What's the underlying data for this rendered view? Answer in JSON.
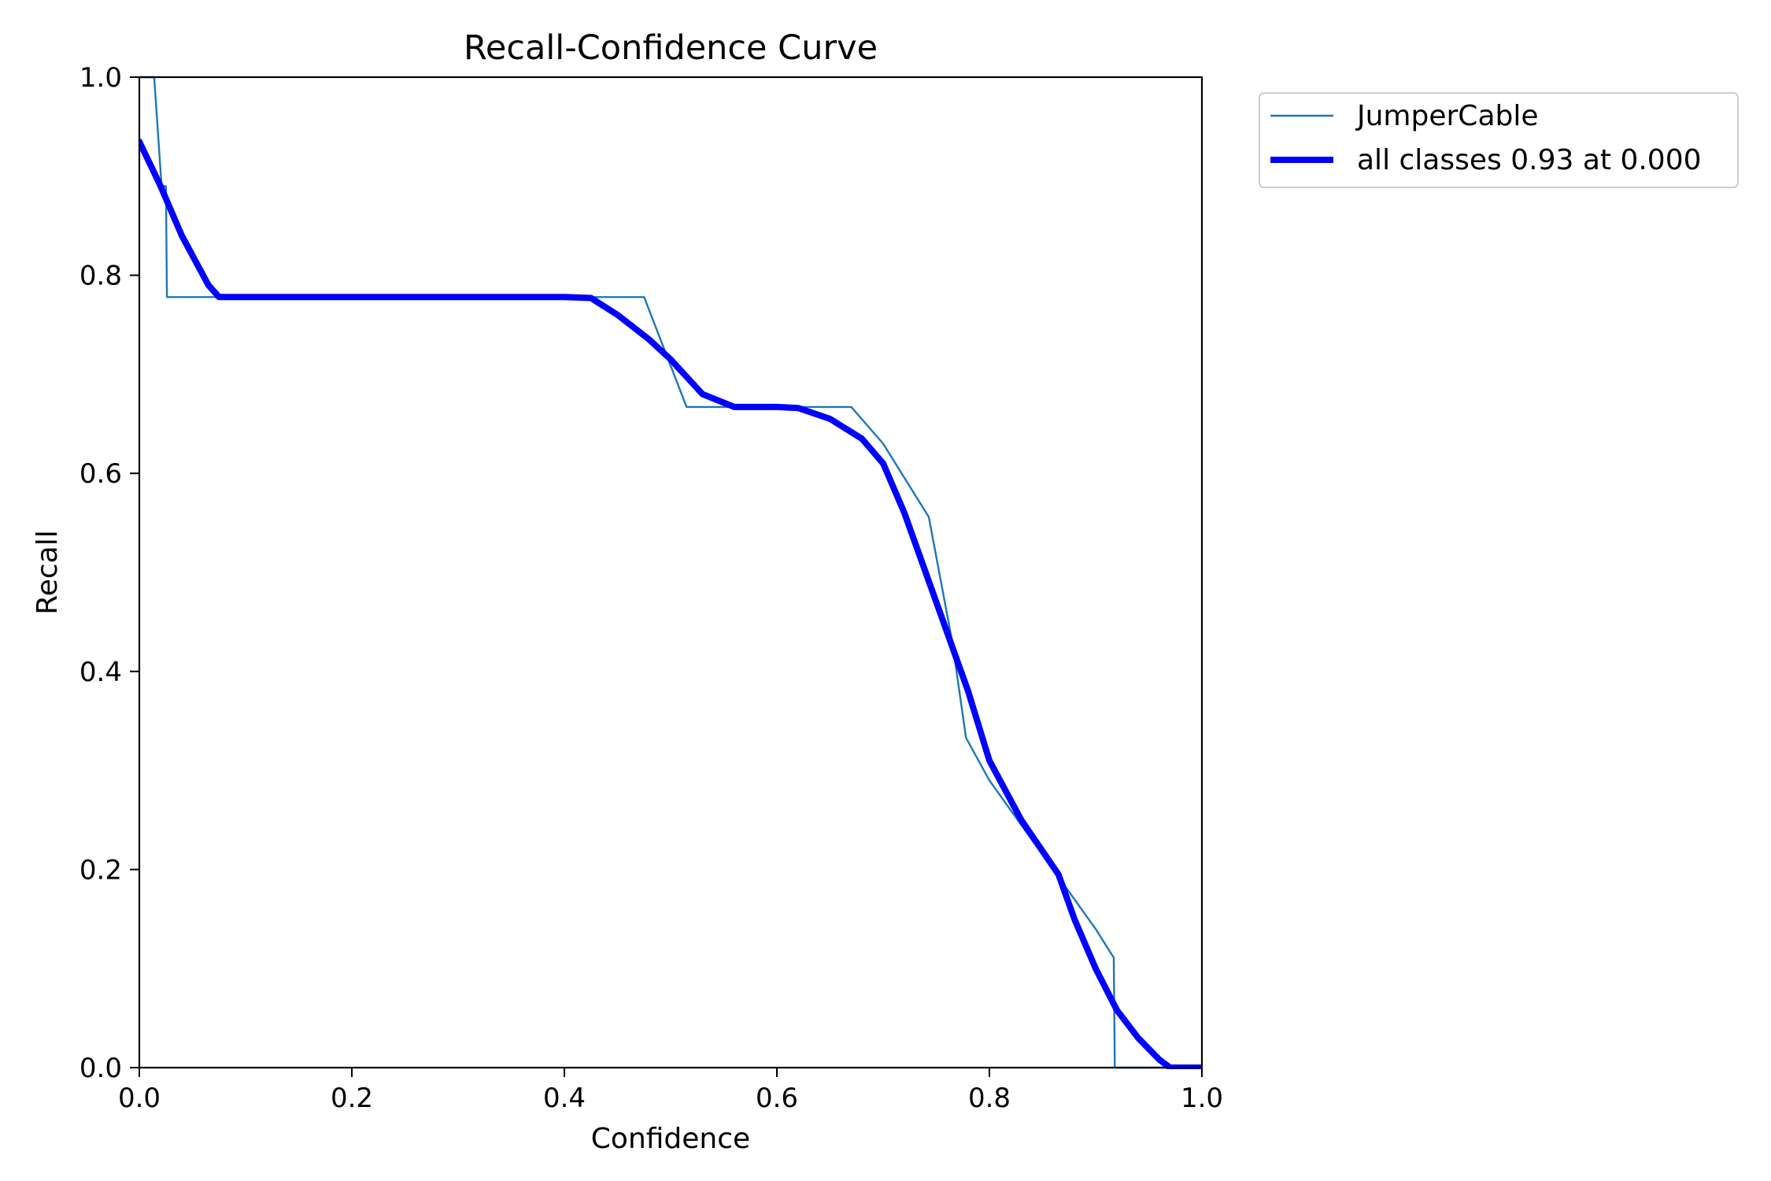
{
  "chart_data": {
    "type": "line",
    "title": "Recall-Confidence Curve",
    "xlabel": "Confidence",
    "ylabel": "Recall",
    "xlim": [
      0.0,
      1.0
    ],
    "ylim": [
      0.0,
      1.0
    ],
    "xticks": [
      "0.0",
      "0.2",
      "0.4",
      "0.6",
      "0.8",
      "1.0"
    ],
    "yticks": [
      "0.0",
      "0.2",
      "0.4",
      "0.6",
      "0.8",
      "1.0"
    ],
    "grid": false,
    "legend_position": "outside-top-right",
    "series": [
      {
        "name": "JumperCable",
        "color": "#1f77b4",
        "line_style": "thin",
        "x": [
          0.0,
          0.014,
          0.021,
          0.022,
          0.025,
          0.026,
          0.4,
          0.475,
          0.515,
          0.56,
          0.6,
          0.67,
          0.7,
          0.743,
          0.765,
          0.778,
          0.8,
          0.86,
          0.9,
          0.917,
          0.918,
          0.96,
          1.0
        ],
        "y": [
          1.0,
          1.0,
          0.89,
          0.89,
          0.89,
          0.778,
          0.778,
          0.778,
          0.667,
          0.667,
          0.667,
          0.667,
          0.63,
          0.556,
          0.43,
          0.333,
          0.29,
          0.2,
          0.14,
          0.111,
          0.0,
          0.0,
          0.0
        ]
      },
      {
        "name": "all classes 0.93 at 0.000",
        "color": "#0000ff",
        "line_style": "thick",
        "x": [
          0.0,
          0.02,
          0.04,
          0.065,
          0.075,
          0.1,
          0.2,
          0.3,
          0.4,
          0.425,
          0.45,
          0.48,
          0.5,
          0.53,
          0.56,
          0.6,
          0.62,
          0.65,
          0.68,
          0.7,
          0.72,
          0.75,
          0.78,
          0.8,
          0.83,
          0.865,
          0.88,
          0.9,
          0.92,
          0.94,
          0.96,
          0.97,
          1.0
        ],
        "y": [
          0.935,
          0.89,
          0.84,
          0.79,
          0.778,
          0.778,
          0.778,
          0.778,
          0.778,
          0.777,
          0.76,
          0.735,
          0.715,
          0.68,
          0.667,
          0.667,
          0.666,
          0.655,
          0.635,
          0.61,
          0.56,
          0.47,
          0.38,
          0.31,
          0.25,
          0.195,
          0.15,
          0.1,
          0.058,
          0.03,
          0.008,
          0.0,
          0.0
        ]
      }
    ]
  }
}
